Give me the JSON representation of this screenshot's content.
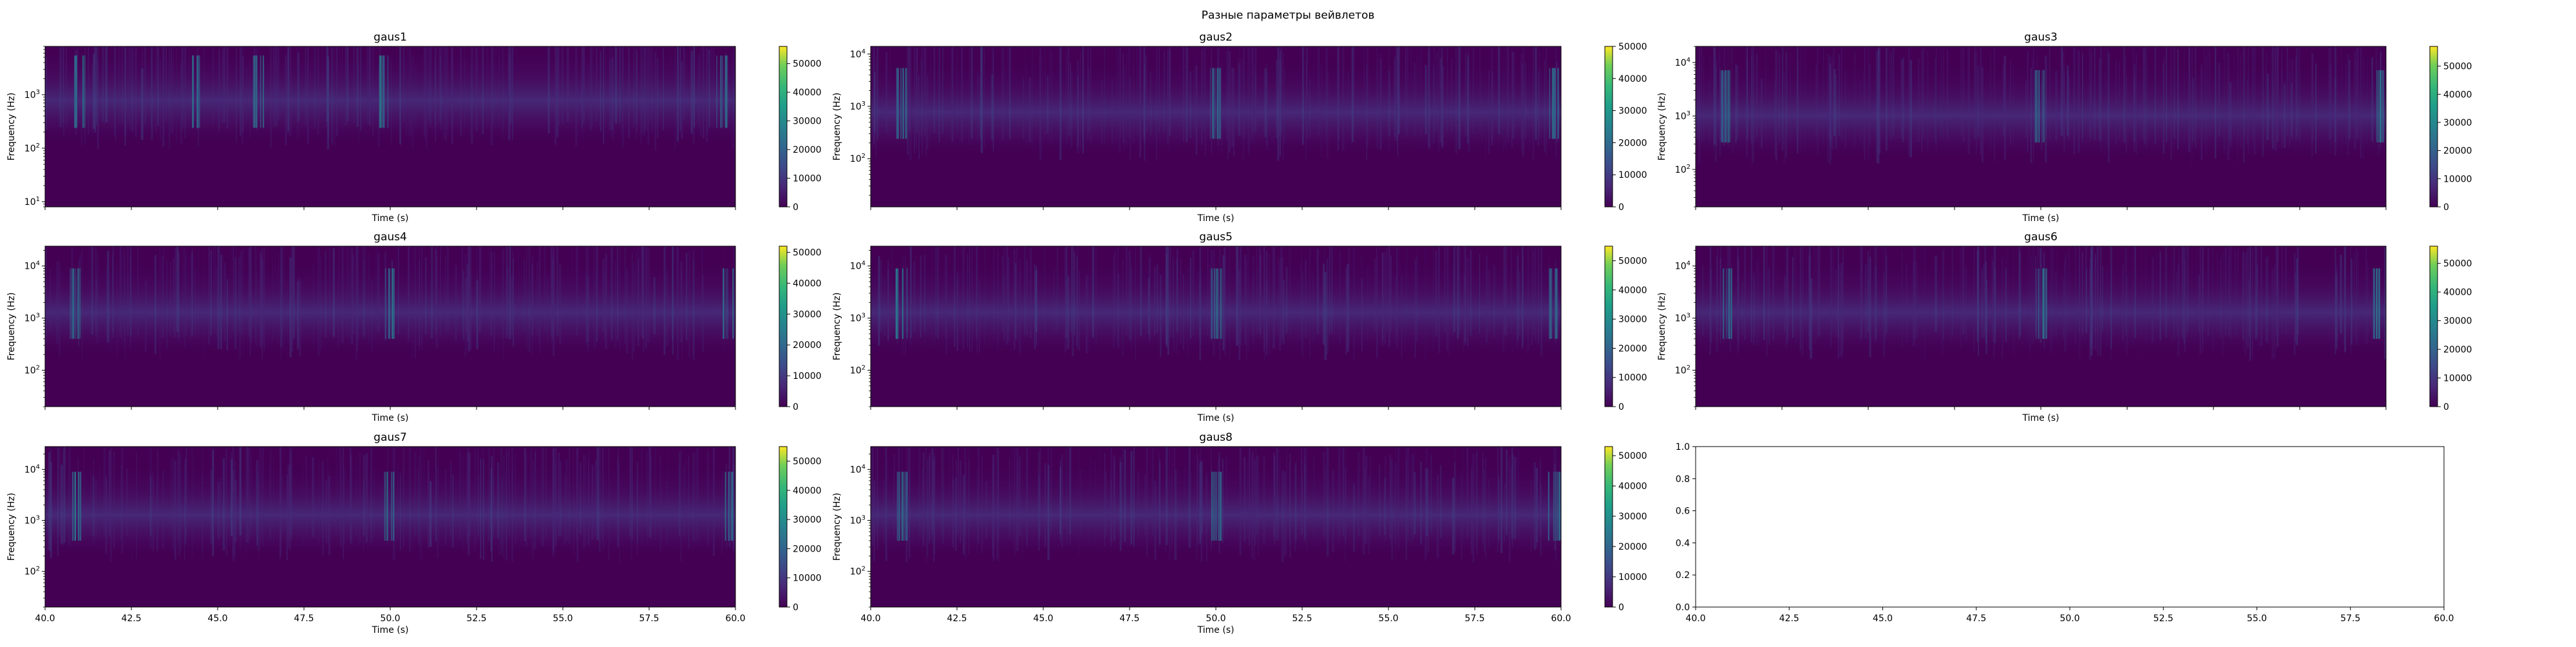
{
  "figure": {
    "suptitle": "Разные параметры вейвлетов"
  },
  "chart_data": [
    {
      "type": "heatmap",
      "title": "gaus1",
      "xlabel": "Time (s)",
      "ylabel": "Frequency (Hz)",
      "yscale": "log",
      "ylim": [
        8,
        8000
      ],
      "yticks": [
        {
          "value": 10,
          "base": "10",
          "exp": "1"
        },
        {
          "value": 100,
          "base": "10",
          "exp": "2"
        },
        {
          "value": 1000,
          "base": "10",
          "exp": "3"
        }
      ],
      "xlim": [
        40,
        60
      ],
      "xticks": [],
      "colorbar": {
        "min": 0,
        "max": 56000,
        "ticks": [
          "0",
          "10000",
          "20000",
          "30000",
          "40000",
          "50000"
        ],
        "tick_values": [
          0,
          10000,
          20000,
          30000,
          40000,
          50000
        ]
      },
      "colormap": "viridis",
      "dominant_band_hz": [
        300,
        3000
      ],
      "bursts_s": [
        41.0,
        44.4,
        46.2,
        49.8,
        59.6
      ]
    },
    {
      "type": "heatmap",
      "title": "gaus2",
      "xlabel": "Time (s)",
      "ylabel": "Frequency (Hz)",
      "yscale": "log",
      "ylim": [
        12,
        14000
      ],
      "yticks": [
        {
          "value": 100,
          "base": "10",
          "exp": "2"
        },
        {
          "value": 1000,
          "base": "10",
          "exp": "3"
        },
        {
          "value": 10000,
          "base": "10",
          "exp": "4"
        }
      ],
      "xlim": [
        40,
        60
      ],
      "xticks": [],
      "colorbar": {
        "min": 0,
        "max": 50000,
        "ticks": [
          "0",
          "10000",
          "20000",
          "30000",
          "40000",
          "50000"
        ],
        "tick_values": [
          0,
          10000,
          20000,
          30000,
          40000,
          50000
        ]
      },
      "colormap": "viridis",
      "dominant_band_hz": [
        300,
        3000
      ],
      "bursts_s": [
        40.9,
        50.0,
        59.8
      ]
    },
    {
      "type": "heatmap",
      "title": "gaus3",
      "xlabel": "Time (s)",
      "ylabel": "Frequency (Hz)",
      "yscale": "log",
      "ylim": [
        20,
        20000
      ],
      "yticks": [
        {
          "value": 100,
          "base": "10",
          "exp": "2"
        },
        {
          "value": 1000,
          "base": "10",
          "exp": "3"
        },
        {
          "value": 10000,
          "base": "10",
          "exp": "4"
        }
      ],
      "xlim": [
        40,
        60
      ],
      "xticks": [],
      "colorbar": {
        "min": 0,
        "max": 57000,
        "ticks": [
          "0",
          "10000",
          "20000",
          "30000",
          "40000",
          "50000"
        ],
        "tick_values": [
          0,
          10000,
          20000,
          30000,
          40000,
          50000
        ]
      },
      "colormap": "viridis",
      "dominant_band_hz": [
        400,
        4000
      ],
      "bursts_s": [
        40.9,
        50.0,
        59.8
      ]
    },
    {
      "type": "heatmap",
      "title": "gaus4",
      "xlabel": "Time (s)",
      "ylabel": "Frequency (Hz)",
      "yscale": "log",
      "ylim": [
        20,
        24000
      ],
      "yticks": [
        {
          "value": 100,
          "base": "10",
          "exp": "2"
        },
        {
          "value": 1000,
          "base": "10",
          "exp": "3"
        },
        {
          "value": 10000,
          "base": "10",
          "exp": "4"
        }
      ],
      "xlim": [
        40,
        60
      ],
      "xticks": [],
      "colorbar": {
        "min": 0,
        "max": 52000,
        "ticks": [
          "0",
          "10000",
          "20000",
          "30000",
          "40000",
          "50000"
        ],
        "tick_values": [
          0,
          10000,
          20000,
          30000,
          40000,
          50000
        ]
      },
      "colormap": "viridis",
      "dominant_band_hz": [
        500,
        5000
      ],
      "bursts_s": [
        40.9,
        50.0,
        59.8
      ]
    },
    {
      "type": "heatmap",
      "title": "gaus5",
      "xlabel": "Time (s)",
      "ylabel": "Frequency (Hz)",
      "yscale": "log",
      "ylim": [
        20,
        24000
      ],
      "yticks": [
        {
          "value": 100,
          "base": "10",
          "exp": "2"
        },
        {
          "value": 1000,
          "base": "10",
          "exp": "3"
        },
        {
          "value": 10000,
          "base": "10",
          "exp": "4"
        }
      ],
      "xlim": [
        40,
        60
      ],
      "xticks": [],
      "colorbar": {
        "min": 0,
        "max": 55000,
        "ticks": [
          "0",
          "10000",
          "20000",
          "30000",
          "40000",
          "50000"
        ],
        "tick_values": [
          0,
          10000,
          20000,
          30000,
          40000,
          50000
        ]
      },
      "colormap": "viridis",
      "dominant_band_hz": [
        500,
        5000
      ],
      "bursts_s": [
        40.9,
        50.0,
        59.8
      ]
    },
    {
      "type": "heatmap",
      "title": "gaus6",
      "xlabel": "Time (s)",
      "ylabel": "Frequency (Hz)",
      "yscale": "log",
      "ylim": [
        20,
        24000
      ],
      "yticks": [
        {
          "value": 100,
          "base": "10",
          "exp": "2"
        },
        {
          "value": 1000,
          "base": "10",
          "exp": "3"
        },
        {
          "value": 10000,
          "base": "10",
          "exp": "4"
        }
      ],
      "xlim": [
        40,
        60
      ],
      "xticks": [],
      "colorbar": {
        "min": 0,
        "max": 56000,
        "ticks": [
          "0",
          "10000",
          "20000",
          "30000",
          "40000",
          "50000"
        ],
        "tick_values": [
          0,
          10000,
          20000,
          30000,
          40000,
          50000
        ]
      },
      "colormap": "viridis",
      "dominant_band_hz": [
        500,
        5000
      ],
      "bursts_s": [
        40.9,
        50.0,
        59.8
      ]
    },
    {
      "type": "heatmap",
      "title": "gaus7",
      "xlabel": "Time (s)",
      "ylabel": "Frequency (Hz)",
      "yscale": "log",
      "ylim": [
        20,
        28000
      ],
      "yticks": [
        {
          "value": 100,
          "base": "10",
          "exp": "2"
        },
        {
          "value": 1000,
          "base": "10",
          "exp": "3"
        },
        {
          "value": 10000,
          "base": "10",
          "exp": "4"
        }
      ],
      "xlim": [
        40,
        60
      ],
      "xticks": [
        "40.0",
        "42.5",
        "45.0",
        "47.5",
        "50.0",
        "52.5",
        "55.0",
        "57.5",
        "60.0"
      ],
      "xtick_values": [
        40.0,
        42.5,
        45.0,
        47.5,
        50.0,
        52.5,
        55.0,
        57.5,
        60.0
      ],
      "colorbar": {
        "min": 0,
        "max": 55000,
        "ticks": [
          "0",
          "10000",
          "20000",
          "30000",
          "40000",
          "50000"
        ],
        "tick_values": [
          0,
          10000,
          20000,
          30000,
          40000,
          50000
        ]
      },
      "colormap": "viridis",
      "dominant_band_hz": [
        500,
        5000
      ],
      "bursts_s": [
        40.9,
        50.0,
        59.8
      ]
    },
    {
      "type": "heatmap",
      "title": "gaus8",
      "xlabel": "Time (s)",
      "ylabel": "Frequency (Hz)",
      "yscale": "log",
      "ylim": [
        20,
        28000
      ],
      "yticks": [
        {
          "value": 100,
          "base": "10",
          "exp": "2"
        },
        {
          "value": 1000,
          "base": "10",
          "exp": "3"
        },
        {
          "value": 10000,
          "base": "10",
          "exp": "4"
        }
      ],
      "xlim": [
        40,
        60
      ],
      "xticks": [
        "40.0",
        "42.5",
        "45.0",
        "47.5",
        "50.0",
        "52.5",
        "55.0",
        "57.5",
        "60.0"
      ],
      "xtick_values": [
        40.0,
        42.5,
        45.0,
        47.5,
        50.0,
        52.5,
        55.0,
        57.5,
        60.0
      ],
      "colorbar": {
        "min": 0,
        "max": 53000,
        "ticks": [
          "0",
          "10000",
          "20000",
          "30000",
          "40000",
          "50000"
        ],
        "tick_values": [
          0,
          10000,
          20000,
          30000,
          40000,
          50000
        ]
      },
      "colormap": "viridis",
      "dominant_band_hz": [
        500,
        5000
      ],
      "bursts_s": [
        40.9,
        50.0,
        59.8
      ]
    },
    {
      "type": "line",
      "title": "",
      "xlabel": "",
      "ylabel": "",
      "xlim": [
        40,
        60
      ],
      "ylim": [
        0,
        1
      ],
      "xticks": [
        "40.0",
        "42.5",
        "45.0",
        "47.5",
        "50.0",
        "52.5",
        "55.0",
        "57.5",
        "60.0"
      ],
      "xtick_values": [
        40.0,
        42.5,
        45.0,
        47.5,
        50.0,
        52.5,
        55.0,
        57.5,
        60.0
      ],
      "yticks": [
        "0.0",
        "0.2",
        "0.4",
        "0.6",
        "0.8",
        "1.0"
      ],
      "ytick_values": [
        0.0,
        0.2,
        0.4,
        0.6,
        0.8,
        1.0
      ],
      "series": []
    }
  ]
}
